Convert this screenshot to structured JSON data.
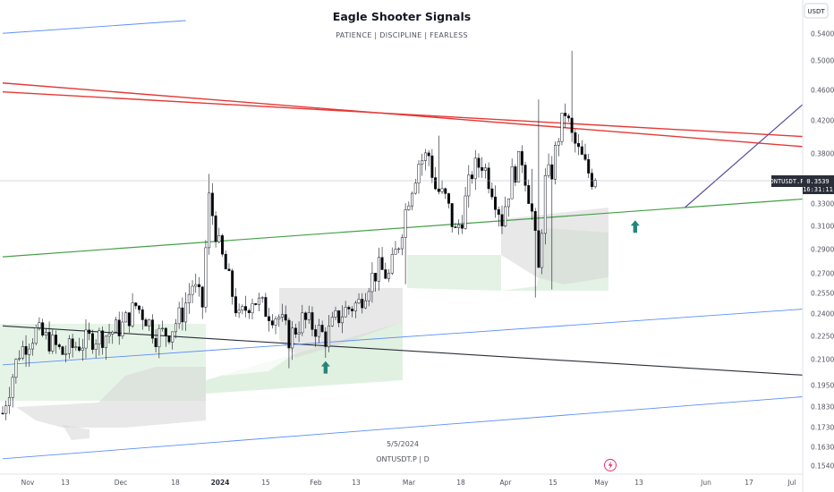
{
  "header": {
    "title": "Eagle Shooter Signals",
    "subtitle": "PATIENCE  |  DISCIPLINE  |  FEARLESS"
  },
  "currency_button": "USDT",
  "watermark": {
    "date": "5/5/2024",
    "symbol": "ONTUSDT.P | D"
  },
  "price_label": {
    "symbol": "ONTUSDT.P",
    "price": "0.3539",
    "countdown": "16:31:11"
  },
  "colors": {
    "up": "#ffffff",
    "down": "#000000",
    "wick": "#131722",
    "red_line": "#e53935",
    "green_line": "#43a047",
    "blue_line": "#5b8ff9",
    "black_line": "#2a2e39",
    "purple_line": "#5e4fa2",
    "cloud_green": "#c8e6c9",
    "cloud_gray": "#d6d6d6",
    "arrow": "#26857b"
  },
  "chart_data": {
    "type": "candlestick",
    "y_ticks": [
      "0.5400",
      "0.5000",
      "0.4600",
      "0.4200",
      "0.3800",
      "0.3300",
      "0.3100",
      "0.2900",
      "0.2700",
      "0.2550",
      "0.2400",
      "0.2250",
      "0.2100",
      "0.1950",
      "0.1830",
      "0.1730",
      "0.1630",
      "0.1540"
    ],
    "x_ticks": [
      {
        "label": "Nov",
        "bold": false
      },
      {
        "label": "13",
        "bold": false
      },
      {
        "label": "Dec",
        "bold": false
      },
      {
        "label": "18",
        "bold": false
      },
      {
        "label": "2024",
        "bold": true
      },
      {
        "label": "15",
        "bold": false
      },
      {
        "label": "Feb",
        "bold": false
      },
      {
        "label": "13",
        "bold": false
      },
      {
        "label": "Mar",
        "bold": false
      },
      {
        "label": "18",
        "bold": false
      },
      {
        "label": "Apr",
        "bold": false
      },
      {
        "label": "15",
        "bold": false
      },
      {
        "label": "May",
        "bold": false
      },
      {
        "label": "13",
        "bold": false
      },
      {
        "label": "Jun",
        "bold": false
      },
      {
        "label": "17",
        "bold": false
      },
      {
        "label": "Jul",
        "bold": false
      }
    ],
    "x_index_start": "2023-10-26",
    "last_price": 0.3539,
    "ohlc_anchors": [
      [
        0,
        0.18
      ],
      [
        5,
        0.215
      ],
      [
        10,
        0.228
      ],
      [
        14,
        0.222
      ],
      [
        18,
        0.214
      ],
      [
        22,
        0.219
      ],
      [
        27,
        0.224
      ],
      [
        31,
        0.226
      ],
      [
        36,
        0.232
      ],
      [
        40,
        0.246
      ],
      [
        43,
        0.238
      ],
      [
        46,
        0.226
      ],
      [
        50,
        0.228
      ],
      [
        54,
        0.241
      ],
      [
        57,
        0.262
      ],
      [
        60,
        0.246
      ],
      [
        62,
        0.335
      ],
      [
        65,
        0.292
      ],
      [
        68,
        0.264
      ],
      [
        71,
        0.236
      ],
      [
        75,
        0.252
      ],
      [
        79,
        0.243
      ],
      [
        83,
        0.238
      ],
      [
        86,
        0.224
      ],
      [
        90,
        0.236
      ],
      [
        94,
        0.231
      ],
      [
        97,
        0.224
      ],
      [
        100,
        0.236
      ],
      [
        103,
        0.243
      ],
      [
        107,
        0.248
      ],
      [
        110,
        0.264
      ],
      [
        113,
        0.274
      ],
      [
        116,
        0.268
      ],
      [
        119,
        0.296
      ],
      [
        122,
        0.338
      ],
      [
        125,
        0.372
      ],
      [
        128,
        0.379
      ],
      [
        130,
        0.346
      ],
      [
        133,
        0.335
      ],
      [
        136,
        0.304
      ],
      [
        138,
        0.319
      ],
      [
        141,
        0.362
      ],
      [
        144,
        0.372
      ],
      [
        147,
        0.347
      ],
      [
        150,
        0.316
      ],
      [
        153,
        0.358
      ],
      [
        156,
        0.376
      ],
      [
        159,
        0.322
      ],
      [
        161,
        0.272
      ],
      [
        163,
        0.352
      ],
      [
        165,
        0.363
      ],
      [
        167,
        0.402
      ],
      [
        169,
        0.432
      ],
      [
        171,
        0.4
      ],
      [
        173,
        0.382
      ],
      [
        175,
        0.367
      ],
      [
        177,
        0.356
      ],
      [
        178,
        0.36
      ]
    ],
    "trendlines": [
      {
        "name": "",
        "color": "red",
        "points": [
          [
            "2023-10-26",
            0.47
          ],
          [
            "2024-07-01",
            0.386
          ]
        ]
      },
      {
        "name": "",
        "color": "red",
        "points": [
          [
            "2023-10-26",
            0.458
          ],
          [
            "2024-07-01",
            0.399
          ]
        ]
      },
      {
        "name": "",
        "color": "green",
        "points": [
          [
            "2023-10-26",
            0.284
          ],
          [
            "2024-07-01",
            0.337
          ]
        ]
      },
      {
        "name": "",
        "color": "black",
        "points": [
          [
            "2023-10-26",
            0.232
          ],
          [
            "2024-07-01",
            0.2
          ]
        ]
      },
      {
        "name": "",
        "color": "blue",
        "points": [
          [
            "2023-10-26",
            0.207
          ],
          [
            "2024-07-01",
            0.245
          ]
        ]
      },
      {
        "name": "",
        "color": "blue",
        "points": [
          [
            "2023-10-26",
            0.1575
          ],
          [
            "2024-07-01",
            0.19
          ]
        ]
      },
      {
        "name": "",
        "color": "blue",
        "points": [
          [
            "2023-10-26",
            0.541
          ],
          [
            "2023-12-20",
            0.56
          ]
        ]
      },
      {
        "name": "",
        "color": "purple",
        "points": [
          [
            "2024-05-18",
            0.327
          ],
          [
            "2024-07-01",
            0.475
          ]
        ]
      }
    ],
    "signals": [
      {
        "type": "buy-arrow",
        "date": "2024-01-31",
        "price": 0.205
      },
      {
        "type": "buy-arrow",
        "date": "2024-05-03",
        "price": 0.309
      }
    ]
  }
}
